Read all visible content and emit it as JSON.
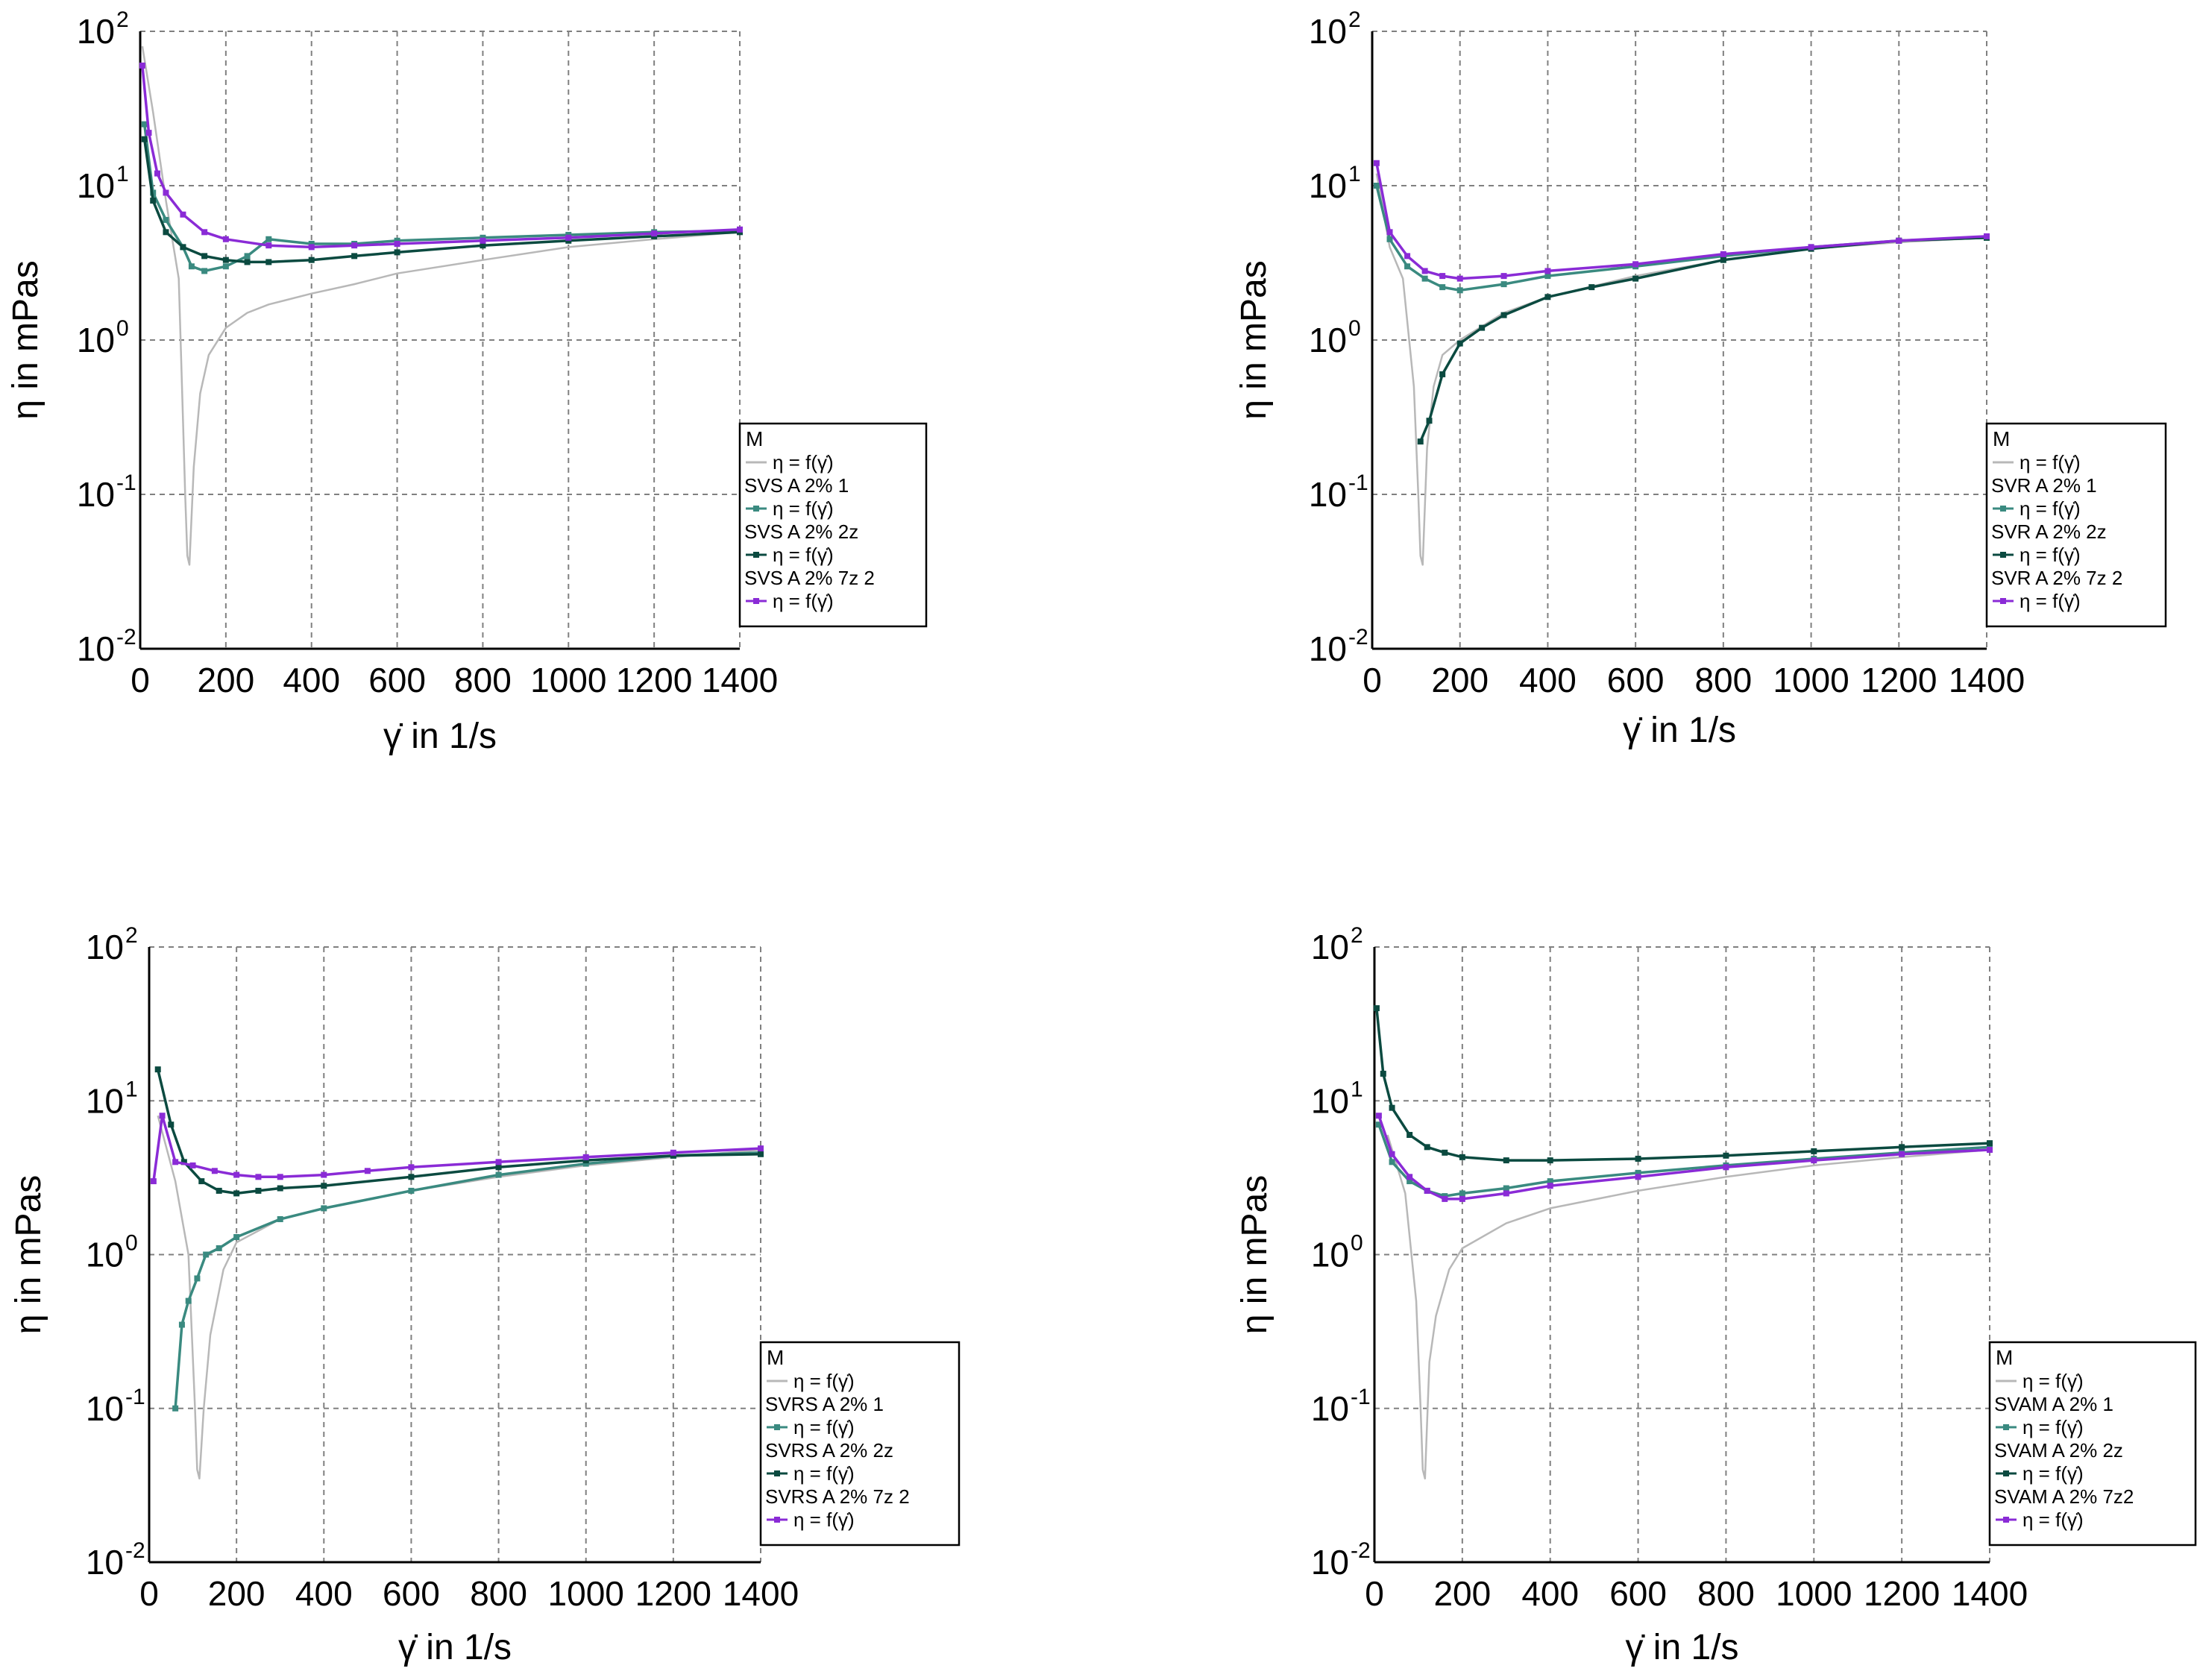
{
  "colors": {
    "grid": "#808080",
    "series_colors": [
      "#b8b8b8",
      "#3a8a80",
      "#0b4a40",
      "#8a2bd6"
    ]
  },
  "chart_data": [
    {
      "type": "line",
      "xlabel": "γ̇ in 1/s",
      "ylabel": "η in mPas",
      "xlim": [
        0,
        1400
      ],
      "x_ticks": [
        "0",
        "200",
        "400",
        "600",
        "800",
        "1000",
        "1200",
        "1400"
      ],
      "ylim": [
        0.01,
        100
      ],
      "y_scale": "log",
      "legend_title": "M",
      "legend_position": "right",
      "series": [
        {
          "name": "η = f(γ̇)",
          "group": "",
          "x": [
            5,
            30,
            60,
            90,
            100,
            105,
            110,
            115,
            125,
            140,
            160,
            200,
            250,
            300,
            400,
            500,
            600,
            800,
            1000,
            1200,
            1400
          ],
          "values": [
            80,
            30,
            8,
            2.5,
            0.3,
            0.1,
            0.04,
            0.035,
            0.15,
            0.45,
            0.8,
            1.2,
            1.5,
            1.7,
            2,
            2.3,
            2.7,
            3.3,
            4,
            4.5,
            5
          ]
        },
        {
          "name": "η = f(γ̇)",
          "group": "SVS A 2% 1",
          "x": [
            10,
            30,
            60,
            100,
            120,
            150,
            200,
            250,
            300,
            400,
            500,
            600,
            800,
            1000,
            1200,
            1400
          ],
          "values": [
            25,
            9,
            6,
            4,
            3,
            2.8,
            3,
            3.5,
            4.5,
            4.2,
            4.2,
            4.4,
            4.6,
            4.8,
            5,
            5.1
          ]
        },
        {
          "name": "η = f(γ̇)",
          "group": "SVS A 2% 2z",
          "x": [
            10,
            30,
            60,
            100,
            150,
            200,
            250,
            300,
            400,
            500,
            600,
            800,
            1000,
            1200,
            1400
          ],
          "values": [
            20,
            8,
            5,
            4,
            3.5,
            3.3,
            3.2,
            3.2,
            3.3,
            3.5,
            3.7,
            4.1,
            4.4,
            4.7,
            5
          ]
        },
        {
          "name": "η = f(γ̇)",
          "group": "SVS A 2% 7z 2",
          "x": [
            5,
            20,
            40,
            60,
            100,
            150,
            200,
            300,
            400,
            500,
            600,
            800,
            1000,
            1200,
            1400
          ],
          "values": [
            60,
            22,
            12,
            9,
            6.5,
            5,
            4.5,
            4.1,
            4,
            4.1,
            4.2,
            4.4,
            4.6,
            4.9,
            5.2
          ]
        }
      ]
    },
    {
      "type": "line",
      "xlabel": "γ̇ in 1/s",
      "ylabel": "η in mPas",
      "xlim": [
        0,
        1400
      ],
      "x_ticks": [
        "0",
        "200",
        "400",
        "600",
        "800",
        "1000",
        "1200",
        "1400"
      ],
      "ylim": [
        0.01,
        100
      ],
      "y_scale": "log",
      "legend_title": "M",
      "legend_position": "right",
      "series": [
        {
          "name": "η = f(γ̇)",
          "group": "",
          "x": [
            10,
            40,
            70,
            95,
            105,
            110,
            115,
            125,
            140,
            160,
            200,
            300,
            400,
            600,
            800,
            1000,
            1200,
            1400
          ],
          "values": [
            12,
            4,
            2.5,
            0.5,
            0.1,
            0.04,
            0.035,
            0.2,
            0.5,
            0.8,
            1,
            1.5,
            1.9,
            2.6,
            3.3,
            3.9,
            4.3,
            4.6
          ]
        },
        {
          "name": "η = f(γ̇)",
          "group": "SVR A 2% 1",
          "x": [
            10,
            40,
            80,
            120,
            160,
            200,
            300,
            400,
            600,
            800,
            1000,
            1200,
            1400
          ],
          "values": [
            10,
            4.5,
            3,
            2.5,
            2.2,
            2.1,
            2.3,
            2.6,
            3,
            3.5,
            4,
            4.4,
            4.6
          ]
        },
        {
          "name": "η = f(γ̇)",
          "group": "SVR A 2% 2z",
          "x": [
            110,
            130,
            160,
            200,
            250,
            300,
            400,
            500,
            600,
            800,
            1000,
            1200,
            1400
          ],
          "values": [
            0.22,
            0.3,
            0.6,
            0.95,
            1.2,
            1.45,
            1.9,
            2.2,
            2.5,
            3.3,
            3.9,
            4.4,
            4.6
          ]
        },
        {
          "name": "η = f(γ̇)",
          "group": "SVR A 2% 7z 2",
          "x": [
            10,
            40,
            80,
            120,
            160,
            200,
            300,
            400,
            600,
            800,
            1000,
            1200,
            1400
          ],
          "values": [
            14,
            5,
            3.5,
            2.8,
            2.6,
            2.5,
            2.6,
            2.8,
            3.1,
            3.6,
            4,
            4.4,
            4.7
          ]
        }
      ]
    },
    {
      "type": "line",
      "xlabel": "γ̇ in 1/s",
      "ylabel": "η in mPas",
      "xlim": [
        0,
        1400
      ],
      "x_ticks": [
        "0",
        "200",
        "400",
        "600",
        "800",
        "1000",
        "1200",
        "1400"
      ],
      "ylim": [
        0.01,
        100
      ],
      "y_scale": "log",
      "legend_title": "M",
      "legend_position": "right",
      "series": [
        {
          "name": "η = f(γ̇)",
          "group": "",
          "x": [
            20,
            60,
            90,
            105,
            110,
            115,
            125,
            140,
            170,
            200,
            300,
            400,
            600,
            800,
            1000,
            1200,
            1400
          ],
          "values": [
            8,
            3,
            1,
            0.1,
            0.04,
            0.035,
            0.1,
            0.3,
            0.8,
            1.2,
            1.7,
            2,
            2.6,
            3.2,
            3.8,
            4.3,
            4.8
          ]
        },
        {
          "name": "η = f(γ̇)",
          "group": "SVRS A 2% 1",
          "x": [
            60,
            75,
            90,
            110,
            130,
            160,
            200,
            300,
            400,
            600,
            800,
            1000,
            1200,
            1400
          ],
          "values": [
            0.1,
            0.35,
            0.5,
            0.7,
            1,
            1.1,
            1.3,
            1.7,
            2,
            2.6,
            3.3,
            3.9,
            4.4,
            4.6
          ]
        },
        {
          "name": "η = f(γ̇)",
          "group": "SVRS A 2% 2z",
          "x": [
            20,
            50,
            80,
            120,
            160,
            200,
            250,
            300,
            400,
            600,
            800,
            1000,
            1200,
            1400
          ],
          "values": [
            16,
            7,
            4,
            3,
            2.6,
            2.5,
            2.6,
            2.7,
            2.8,
            3.2,
            3.7,
            4.1,
            4.4,
            4.5
          ]
        },
        {
          "name": "η = f(γ̇)",
          "group": "SVRS A 2% 7z 2",
          "x": [
            10,
            30,
            60,
            100,
            150,
            200,
            250,
            300,
            400,
            500,
            600,
            800,
            1000,
            1200,
            1400
          ],
          "values": [
            3,
            8,
            4,
            3.8,
            3.5,
            3.3,
            3.2,
            3.2,
            3.3,
            3.5,
            3.7,
            4,
            4.3,
            4.6,
            4.9
          ]
        }
      ]
    },
    {
      "type": "line",
      "xlabel": "γ̇ in 1/s",
      "ylabel": "η in mPas",
      "xlim": [
        0,
        1400
      ],
      "x_ticks": [
        "0",
        "200",
        "400",
        "600",
        "800",
        "1000",
        "1200",
        "1400"
      ],
      "ylim": [
        0.01,
        100
      ],
      "y_scale": "log",
      "legend_title": "M",
      "legend_position": "right",
      "series": [
        {
          "name": "η = f(γ̇)",
          "group": "",
          "x": [
            30,
            70,
            95,
            105,
            110,
            115,
            125,
            140,
            170,
            200,
            300,
            400,
            600,
            800,
            1000,
            1200,
            1400
          ],
          "values": [
            6,
            2.5,
            0.5,
            0.1,
            0.04,
            0.035,
            0.2,
            0.4,
            0.8,
            1.1,
            1.6,
            2,
            2.6,
            3.2,
            3.8,
            4.3,
            4.8
          ]
        },
        {
          "name": "η = f(γ̇)",
          "group": "SVAM A 2% 1",
          "x": [
            10,
            40,
            80,
            120,
            160,
            200,
            300,
            400,
            600,
            800,
            1000,
            1200,
            1400
          ],
          "values": [
            7,
            4,
            3,
            2.6,
            2.4,
            2.5,
            2.7,
            3,
            3.4,
            3.8,
            4.2,
            4.6,
            5
          ]
        },
        {
          "name": "η = f(γ̇)",
          "group": "SVAM A 2% 2z",
          "x": [
            5,
            20,
            40,
            80,
            120,
            160,
            200,
            300,
            400,
            600,
            800,
            1000,
            1200,
            1400
          ],
          "values": [
            40,
            15,
            9,
            6,
            5,
            4.6,
            4.3,
            4.1,
            4.1,
            4.2,
            4.4,
            4.7,
            5,
            5.3
          ]
        },
        {
          "name": "η = f(γ̇)",
          "group": "SVAM A 2% 7z2",
          "x": [
            10,
            40,
            80,
            120,
            160,
            200,
            300,
            400,
            600,
            800,
            1000,
            1200,
            1400
          ],
          "values": [
            8,
            4.5,
            3.2,
            2.6,
            2.3,
            2.3,
            2.5,
            2.8,
            3.2,
            3.7,
            4.1,
            4.5,
            4.8
          ]
        }
      ]
    }
  ]
}
